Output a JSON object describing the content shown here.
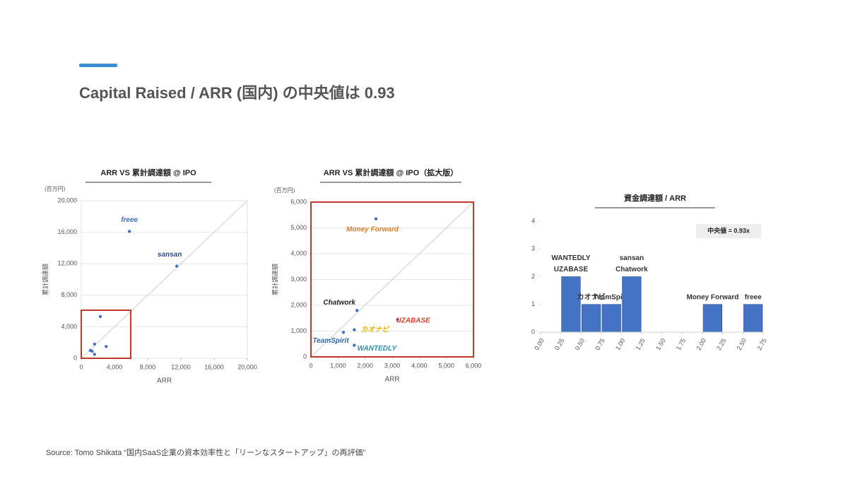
{
  "title": "Capital Raised / ARR (国内) の中央値は 0.93",
  "source": "Source: Tomo Shikata “国内SaaS企業の資本効率性と「リーンなスタートアップ」の再評価”",
  "chart_data": [
    {
      "type": "scatter",
      "title": "ARR VS 累計調達額 @ IPO",
      "y_unit": "(百万円)",
      "ylabel": "累計調達額",
      "xlabel": "ARR",
      "x": [
        5800,
        11500,
        2300,
        1600,
        1300,
        1600,
        3000,
        1100
      ],
      "values": [
        16100,
        11700,
        5300,
        1800,
        900,
        500,
        1500,
        1000
      ],
      "point_labels": [
        "freee",
        "sansan",
        null,
        null,
        null,
        null,
        null,
        null
      ],
      "point_label_colors": [
        "#3f6fb5",
        "#2b4c8c",
        null,
        null,
        null,
        null,
        null,
        null
      ],
      "color": "#4472c4",
      "grid": true,
      "xlim": [
        0,
        20000
      ],
      "ylim": [
        0,
        20000
      ],
      "xticks": [
        0,
        {
          "value": 4000,
          "label": "4,000"
        },
        {
          "value": 8000,
          "label": "8,000"
        },
        {
          "value": 12000,
          "label": "12,000"
        },
        {
          "value": 16000,
          "label": "16,000"
        },
        {
          "value": 20000,
          "label": "20,000"
        }
      ],
      "yticks": [
        0,
        {
          "value": 4000,
          "label": "4,000"
        },
        {
          "value": 8000,
          "label": "8,000"
        },
        {
          "value": 12000,
          "label": "12,000"
        },
        {
          "value": 16000,
          "label": "16,000"
        },
        {
          "value": 20000,
          "label": "20,000"
        }
      ]
    },
    {
      "type": "scatter",
      "title": "ARR VS 累計調達額 @ IPO（拡大版）",
      "y_unit": "(百万円)",
      "ylabel": "累計調達額",
      "xlabel": "ARR",
      "x": [
        2400,
        1700,
        3200,
        1600,
        1200,
        1600
      ],
      "values": [
        5350,
        1800,
        1450,
        1050,
        950,
        450
      ],
      "point_labels": [
        "Money Forward",
        "Chatwork",
        "UZABASE",
        "カオナビ",
        "TeamSpirit",
        "WANTEDLY"
      ],
      "point_label_colors": [
        "#e07b28",
        "#222222",
        "#d9412b",
        "#f0b400",
        "#2c6aa8",
        "#2f8fb0"
      ],
      "color": "#4472c4",
      "grid": true,
      "xlim": [
        0,
        6000
      ],
      "ylim": [
        0,
        6000
      ],
      "xticks": [
        0,
        {
          "value": 1000,
          "label": "1,000"
        },
        {
          "value": 2000,
          "label": "2,000"
        },
        {
          "value": 3000,
          "label": "3,000"
        },
        {
          "value": 4000,
          "label": "4,000"
        },
        {
          "value": 5000,
          "label": "5,000"
        },
        {
          "value": 6000,
          "label": "6,000"
        }
      ],
      "yticks": [
        0,
        {
          "value": 1000,
          "label": "1,000"
        },
        {
          "value": 2000,
          "label": "2,000"
        },
        {
          "value": 3000,
          "label": "3,000"
        },
        {
          "value": 4000,
          "label": "4,000"
        },
        {
          "value": 5000,
          "label": "5,000"
        },
        {
          "value": 6000,
          "label": "6,000"
        }
      ]
    },
    {
      "type": "histogram",
      "title": "資金調達額 / ARR",
      "annotation": "中央値 = 0.93x",
      "bins": [
        0,
        0.25,
        0.5,
        0.75,
        1,
        1.25,
        1.5,
        1.75,
        2,
        2.25,
        2.5,
        2.75
      ],
      "values": [
        0,
        2,
        1,
        1,
        2,
        0,
        0,
        0,
        1,
        0,
        1
      ],
      "bar_labels": [
        null,
        [
          "WANTEDLY",
          "UZABASE"
        ],
        [
          "カオナビ"
        ],
        [
          "TeamSpirit"
        ],
        [
          "sansan",
          "Chatwork"
        ],
        null,
        null,
        null,
        [
          "Money Forward"
        ],
        null,
        [
          "freee"
        ]
      ],
      "color": "#4472c4",
      "xlim": [
        0,
        2.75
      ],
      "ylim": [
        0,
        4
      ],
      "xticks": [
        {
          "value": 0,
          "label": "0.00"
        },
        0.25,
        {
          "value": 0.5,
          "label": "0.50"
        },
        0.75,
        {
          "value": 1,
          "label": "1.00"
        },
        1.25,
        {
          "value": 1.5,
          "label": "1.50"
        },
        1.75,
        {
          "value": 2,
          "label": "2.00"
        },
        2.25,
        {
          "value": 2.5,
          "label": "2.50"
        },
        2.75
      ],
      "yticks": [
        0,
        1,
        2,
        3,
        4
      ]
    }
  ]
}
